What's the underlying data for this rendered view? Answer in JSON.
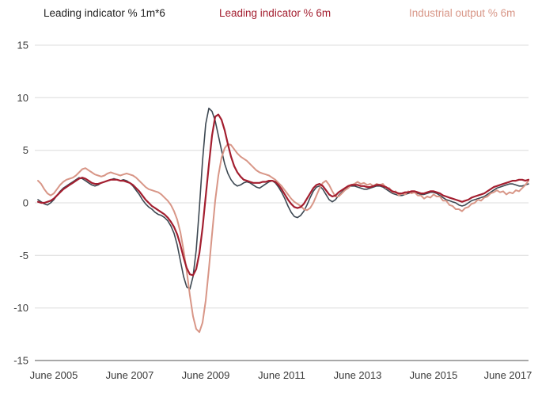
{
  "chart_data": {
    "type": "line",
    "title": "",
    "xlabel": "",
    "ylabel": "",
    "ylim": [
      -15,
      15
    ],
    "y_ticks": [
      15,
      10,
      5,
      0,
      -5,
      -10,
      -15
    ],
    "grid": true,
    "legend_position": "top",
    "x_unit": "month",
    "x_range_note": "monthly points, Jan 2005 - Dec 2017",
    "x_ticks": [
      {
        "label": "June 2005",
        "month_index": 5
      },
      {
        "label": "June 2007",
        "month_index": 29
      },
      {
        "label": "June 2009",
        "month_index": 53
      },
      {
        "label": "June 2011",
        "month_index": 77
      },
      {
        "label": "June 2013",
        "month_index": 101
      },
      {
        "label": "June 2015",
        "month_index": 125
      },
      {
        "label": "June 2017",
        "month_index": 149
      }
    ],
    "legend_colors": [
      "#222222",
      "#a31e2f",
      "#d89687"
    ],
    "colors": {
      "grid": "#dcdcdc",
      "axis": "#8c8c8c",
      "tick_text": "#3a3a3a",
      "background": "#ffffff"
    },
    "series": [
      {
        "name": "Leading indicator % 1m*6",
        "color": "#3d4852",
        "width": 1.6,
        "values": [
          0.3,
          0.1,
          -0.1,
          -0.2,
          0.0,
          0.3,
          0.7,
          1.1,
          1.4,
          1.6,
          1.8,
          2.0,
          2.2,
          2.4,
          2.3,
          2.1,
          1.9,
          1.7,
          1.6,
          1.7,
          1.9,
          2.0,
          2.1,
          2.2,
          2.3,
          2.2,
          2.1,
          2.2,
          2.1,
          1.9,
          1.6,
          1.2,
          0.8,
          0.3,
          -0.1,
          -0.4,
          -0.6,
          -0.9,
          -1.1,
          -1.2,
          -1.4,
          -1.7,
          -2.2,
          -2.9,
          -4.0,
          -5.5,
          -7.0,
          -8.0,
          -8.2,
          -7.0,
          -4.5,
          -0.5,
          4.0,
          7.5,
          9.0,
          8.7,
          7.8,
          6.4,
          5.0,
          3.7,
          2.8,
          2.2,
          1.8,
          1.6,
          1.7,
          1.9,
          2.0,
          1.9,
          1.7,
          1.5,
          1.4,
          1.6,
          1.8,
          2.0,
          2.1,
          1.9,
          1.5,
          1.0,
          0.4,
          -0.3,
          -0.9,
          -1.3,
          -1.4,
          -1.2,
          -0.8,
          -0.2,
          0.5,
          1.1,
          1.5,
          1.6,
          1.3,
          0.8,
          0.3,
          0.1,
          0.3,
          0.7,
          1.0,
          1.3,
          1.5,
          1.6,
          1.6,
          1.5,
          1.4,
          1.3,
          1.3,
          1.4,
          1.5,
          1.6,
          1.6,
          1.5,
          1.3,
          1.1,
          0.9,
          0.8,
          0.7,
          0.7,
          0.8,
          0.9,
          1.0,
          1.0,
          0.9,
          0.8,
          0.8,
          0.9,
          1.0,
          1.0,
          0.9,
          0.7,
          0.5,
          0.3,
          0.2,
          0.1,
          0.0,
          -0.2,
          -0.3,
          -0.2,
          0.0,
          0.2,
          0.3,
          0.4,
          0.5,
          0.6,
          0.8,
          1.0,
          1.2,
          1.4,
          1.5,
          1.6,
          1.7,
          1.8,
          1.8,
          1.7,
          1.6,
          1.6,
          1.7,
          1.8
        ]
      },
      {
        "name": "Leading indicator % 6m",
        "color": "#a31e2f",
        "width": 2.2,
        "values": [
          0.1,
          0.0,
          0.0,
          0.1,
          0.2,
          0.4,
          0.7,
          1.0,
          1.3,
          1.5,
          1.7,
          1.9,
          2.1,
          2.3,
          2.4,
          2.3,
          2.1,
          1.9,
          1.8,
          1.8,
          1.9,
          2.0,
          2.1,
          2.2,
          2.2,
          2.2,
          2.1,
          2.1,
          2.0,
          1.9,
          1.7,
          1.4,
          1.1,
          0.7,
          0.3,
          0.0,
          -0.3,
          -0.5,
          -0.7,
          -0.9,
          -1.1,
          -1.4,
          -1.8,
          -2.3,
          -3.0,
          -4.0,
          -5.2,
          -6.2,
          -6.8,
          -6.9,
          -6.3,
          -4.8,
          -2.4,
          0.6,
          3.6,
          6.4,
          8.2,
          8.4,
          7.9,
          6.9,
          5.6,
          4.4,
          3.5,
          2.9,
          2.5,
          2.2,
          2.1,
          2.0,
          1.9,
          1.9,
          1.9,
          2.0,
          2.0,
          2.1,
          2.1,
          2.0,
          1.7,
          1.3,
          0.8,
          0.3,
          -0.1,
          -0.4,
          -0.5,
          -0.4,
          -0.1,
          0.4,
          0.9,
          1.4,
          1.7,
          1.8,
          1.6,
          1.2,
          0.8,
          0.6,
          0.7,
          1.0,
          1.2,
          1.4,
          1.6,
          1.7,
          1.7,
          1.7,
          1.6,
          1.6,
          1.5,
          1.5,
          1.6,
          1.7,
          1.7,
          1.6,
          1.5,
          1.3,
          1.1,
          1.0,
          0.9,
          0.9,
          1.0,
          1.0,
          1.1,
          1.1,
          1.0,
          0.9,
          0.9,
          1.0,
          1.1,
          1.1,
          1.0,
          0.9,
          0.7,
          0.6,
          0.5,
          0.4,
          0.3,
          0.2,
          0.1,
          0.2,
          0.3,
          0.5,
          0.6,
          0.7,
          0.8,
          0.9,
          1.1,
          1.3,
          1.5,
          1.6,
          1.7,
          1.8,
          1.9,
          2.0,
          2.1,
          2.1,
          2.2,
          2.2,
          2.1,
          2.2
        ]
      },
      {
        "name": "Industrial output % 6m",
        "color": "#d89687",
        "width": 2.0,
        "values": [
          2.1,
          1.8,
          1.3,
          0.9,
          0.7,
          0.9,
          1.3,
          1.7,
          2.0,
          2.2,
          2.3,
          2.4,
          2.6,
          2.9,
          3.2,
          3.3,
          3.1,
          2.9,
          2.7,
          2.6,
          2.5,
          2.6,
          2.8,
          2.9,
          2.8,
          2.7,
          2.6,
          2.7,
          2.8,
          2.7,
          2.6,
          2.4,
          2.1,
          1.8,
          1.5,
          1.3,
          1.2,
          1.1,
          1.0,
          0.8,
          0.5,
          0.2,
          -0.2,
          -0.8,
          -1.6,
          -2.8,
          -4.5,
          -6.5,
          -8.8,
          -10.8,
          -12.0,
          -12.3,
          -11.4,
          -9.3,
          -6.3,
          -3.0,
          0.2,
          2.6,
          4.3,
          5.2,
          5.6,
          5.5,
          5.1,
          4.7,
          4.4,
          4.2,
          4.0,
          3.7,
          3.4,
          3.1,
          2.9,
          2.8,
          2.7,
          2.6,
          2.4,
          2.2,
          1.9,
          1.6,
          1.2,
          0.8,
          0.4,
          0.1,
          -0.1,
          -0.3,
          -0.6,
          -0.7,
          -0.5,
          0.0,
          0.7,
          1.4,
          1.9,
          2.1,
          1.7,
          1.1,
          0.6,
          0.6,
          0.9,
          1.2,
          1.4,
          1.7,
          1.8,
          2.0,
          1.8,
          1.9,
          1.7,
          1.8,
          1.6,
          1.8,
          1.7,
          1.8,
          1.4,
          1.4,
          1.0,
          1.1,
          0.7,
          0.9,
          0.8,
          1.1,
          0.9,
          1.0,
          0.7,
          0.7,
          0.4,
          0.6,
          0.5,
          0.8,
          0.6,
          0.6,
          0.2,
          0.2,
          -0.2,
          -0.3,
          -0.6,
          -0.6,
          -0.8,
          -0.5,
          -0.4,
          -0.1,
          0.0,
          0.3,
          0.2,
          0.5,
          0.6,
          0.9,
          1.0,
          1.2,
          1.0,
          1.1,
          0.8,
          1.0,
          0.9,
          1.2,
          1.1,
          1.4,
          1.7,
          2.1
        ]
      }
    ]
  }
}
